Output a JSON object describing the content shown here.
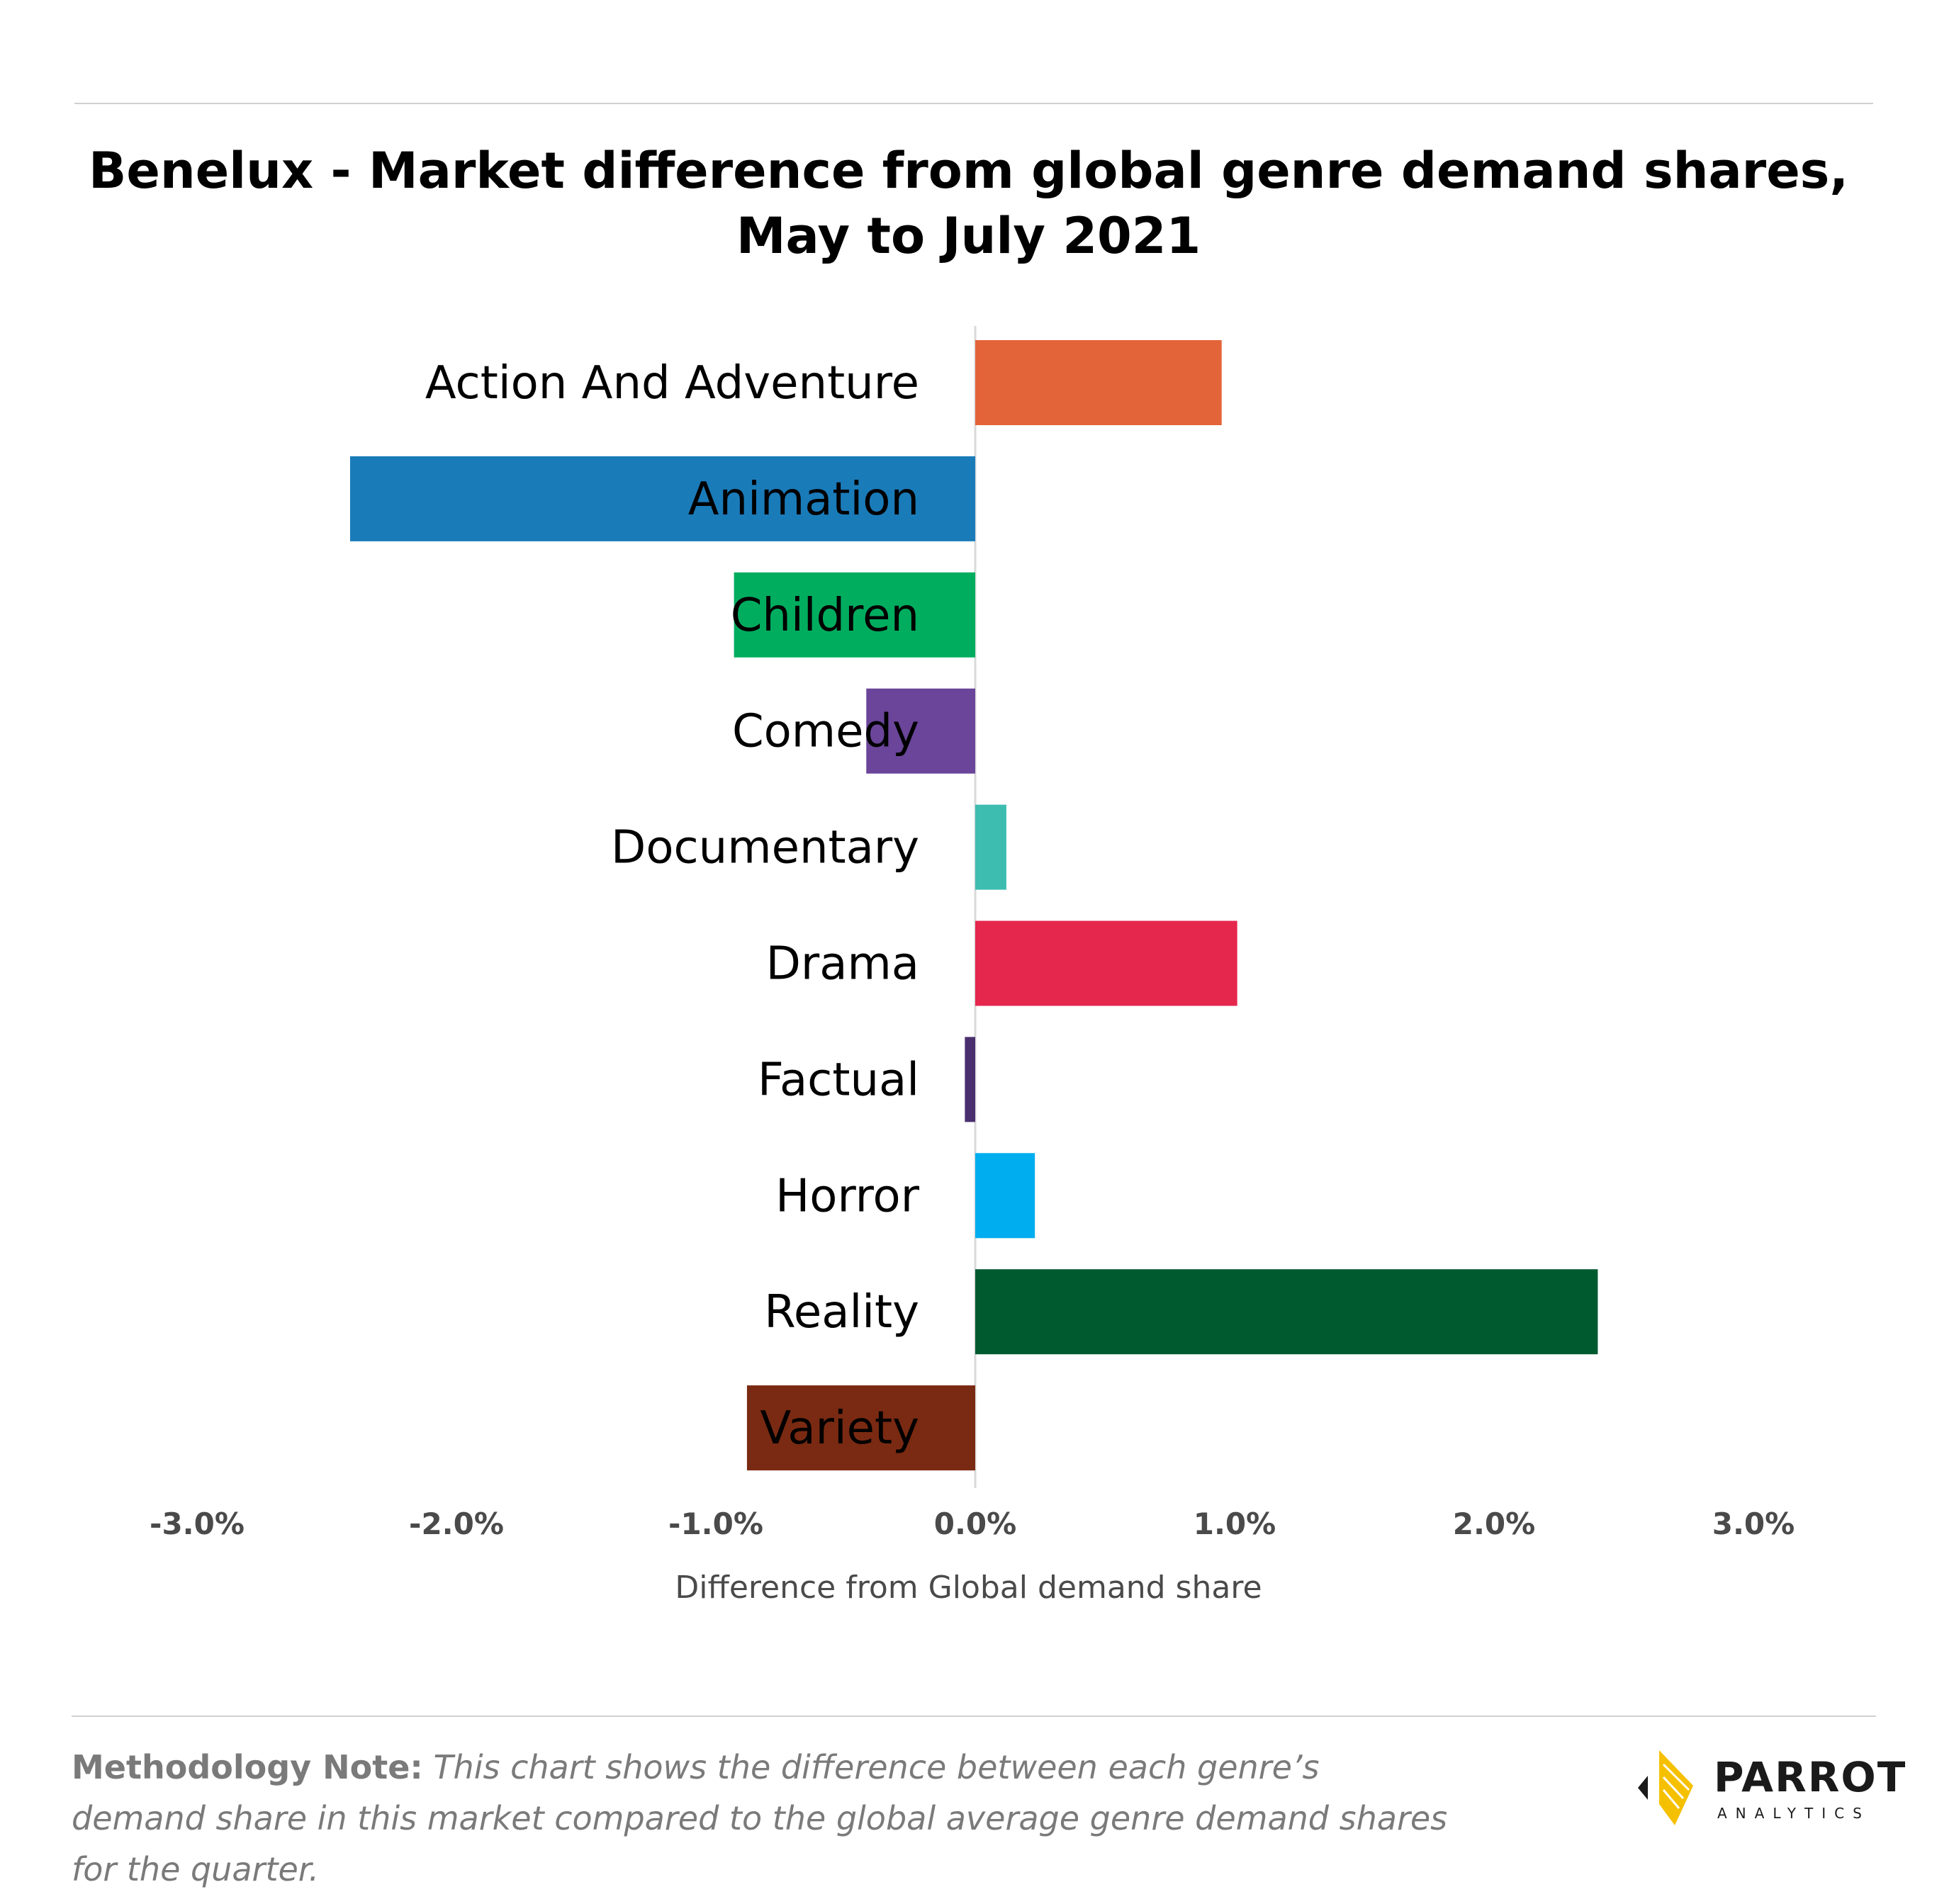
{
  "chart_data": {
    "type": "bar",
    "orientation": "horizontal",
    "title": "Benelux - Market difference from global genre demand shares, May to July 2021",
    "title_lines": [
      "Benelux - Market difference from global genre demand shares,",
      "May to July 2021"
    ],
    "xlabel": "Difference from Global demand share",
    "ylabel": "",
    "xlim": [
      -3.0,
      3.0
    ],
    "x_ticks": [
      -3.0,
      -2.0,
      -1.0,
      0.0,
      1.0,
      2.0,
      3.0
    ],
    "x_tick_labels": [
      "-3.0%",
      "-2.0%",
      "-1.0%",
      "0.0%",
      "1.0%",
      "2.0%",
      "3.0%"
    ],
    "grid": false,
    "categories": [
      "Action And Adventure",
      "Animation",
      "Children",
      "Comedy",
      "Documentary",
      "Drama",
      "Factual",
      "Horror",
      "Reality",
      "Variety"
    ],
    "values": [
      0.95,
      -2.41,
      -0.93,
      -0.42,
      0.12,
      1.01,
      -0.04,
      0.23,
      2.4,
      -0.88
    ],
    "colors": [
      "#e4643a",
      "#1a7bb9",
      "#00ad5f",
      "#6a4599",
      "#3dbdb0",
      "#e5264d",
      "#4a2f6e",
      "#00adee",
      "#005a30",
      "#7a2a12"
    ]
  },
  "methodology": {
    "label": "Methodology Note:",
    "text": " This chart shows the difference between each genre’s demand share in this market compared to the global average genre demand shares for the quarter."
  },
  "logo": {
    "name": "PARROT",
    "sub": "ANALYTICS",
    "accent_color": "#f5c000"
  }
}
